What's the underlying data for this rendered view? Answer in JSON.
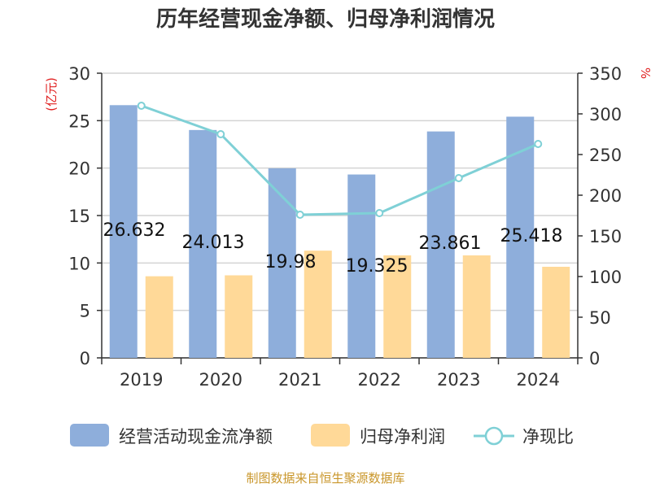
{
  "chart_data": {
    "type": "bar",
    "title": "历年经营现金净额、归母净利润情况",
    "categories": [
      "2019",
      "2020",
      "2021",
      "2022",
      "2023",
      "2024"
    ],
    "series": [
      {
        "name": "经营活动现金流净额",
        "type": "bar",
        "axis": "left",
        "color": "#8eaedb",
        "values": [
          26.632,
          24.013,
          19.98,
          19.325,
          23.861,
          25.418
        ],
        "labels": [
          "26.632",
          "24.013",
          "19.98",
          "19.325",
          "23.861",
          "25.418"
        ]
      },
      {
        "name": "归母净利润",
        "type": "bar",
        "axis": "left",
        "color": "#ffd998",
        "values": [
          8.6,
          8.7,
          11.3,
          10.8,
          10.8,
          9.6
        ]
      },
      {
        "name": "净现比",
        "type": "line",
        "axis": "right",
        "color": "#7fd0d6",
        "values": [
          310,
          275,
          176,
          178,
          221,
          263
        ]
      }
    ],
    "y_left": {
      "label": "(亿元)",
      "min": 0,
      "max": 30,
      "ticks": [
        "0",
        "5",
        "10",
        "15",
        "20",
        "25",
        "30"
      ]
    },
    "y_right": {
      "label": "%",
      "min": 0,
      "max": 350,
      "ticks": [
        "0",
        "50",
        "100",
        "150",
        "200",
        "250",
        "300",
        "350"
      ]
    },
    "grid": true,
    "legend_position": "bottom"
  },
  "source": "制图数据来自恒生聚源数据库"
}
